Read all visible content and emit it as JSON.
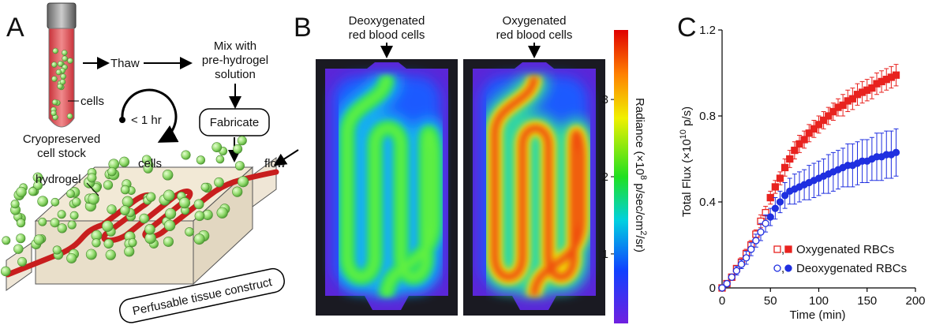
{
  "panel_a": {
    "label": "A",
    "cells_label": "cells",
    "thaw": "Thaw",
    "mix": [
      "Mix with",
      "pre-hydrogel",
      "solution"
    ],
    "fabricate": "Fabricate",
    "time": "< 1 hr",
    "stock": [
      "Cryopreserved",
      "cell stock"
    ],
    "construct_cells": "cells",
    "hydrogel": "hydrogel",
    "flow": "flow",
    "construct": "Perfusable tissue construct"
  },
  "panel_b": {
    "label": "B",
    "images": [
      [
        "Deoxygenated",
        "red blood cells"
      ],
      [
        "Oxygenated",
        "red blood cells"
      ]
    ],
    "colorbar": {
      "label": [
        "Radiance (×10",
        "8",
        " p/sec/cm",
        "2",
        "/sr)"
      ],
      "clim": [
        0.1,
        3.9
      ],
      "ticks": [
        1,
        2,
        3
      ]
    }
  },
  "chart_data": {
    "type": "scatter",
    "panel_label": "C",
    "xlabel": "Time (min)",
    "ylabel": [
      "Total Flux (×10",
      "10",
      " p/s)"
    ],
    "xlim": [
      0,
      200
    ],
    "xticks": [
      0,
      50,
      100,
      150,
      200
    ],
    "ylim": [
      0,
      1.2
    ],
    "yticks": [
      0,
      0.4,
      0.8,
      1.2
    ],
    "legend": "lower right",
    "legend_separator": ",",
    "hollow_until": 45,
    "x": [
      0,
      5,
      10,
      15,
      20,
      25,
      30,
      35,
      40,
      45,
      50,
      55,
      60,
      65,
      70,
      75,
      80,
      85,
      90,
      95,
      100,
      105,
      110,
      115,
      120,
      125,
      130,
      135,
      140,
      145,
      150,
      155,
      160,
      165,
      170,
      175,
      180
    ],
    "series": [
      {
        "name": "Oxygenated RBCs",
        "color": "#e8221f",
        "marker": "square",
        "values": [
          0,
          0.02,
          0.05,
          0.09,
          0.12,
          0.16,
          0.2,
          0.25,
          0.31,
          0.35,
          0.42,
          0.47,
          0.51,
          0.56,
          0.6,
          0.64,
          0.67,
          0.69,
          0.72,
          0.74,
          0.76,
          0.78,
          0.8,
          0.82,
          0.84,
          0.85,
          0.87,
          0.88,
          0.9,
          0.91,
          0.92,
          0.93,
          0.95,
          0.96,
          0.97,
          0.98,
          0.99
        ],
        "errors": [
          0,
          0.01,
          0.01,
          0.01,
          0.02,
          0.02,
          0.02,
          0.02,
          0.03,
          0.03,
          0.03,
          0.03,
          0.03,
          0.04,
          0.04,
          0.04,
          0.04,
          0.04,
          0.04,
          0.04,
          0.04,
          0.04,
          0.04,
          0.04,
          0.04,
          0.05,
          0.05,
          0.05,
          0.05,
          0.05,
          0.05,
          0.05,
          0.05,
          0.05,
          0.05,
          0.05,
          0.05
        ]
      },
      {
        "name": "Deoxygenated RBCs",
        "color": "#1f2fe0",
        "marker": "circle",
        "values": [
          0,
          0.02,
          0.05,
          0.08,
          0.11,
          0.14,
          0.18,
          0.22,
          0.26,
          0.3,
          0.33,
          0.37,
          0.4,
          0.43,
          0.45,
          0.46,
          0.47,
          0.48,
          0.49,
          0.5,
          0.51,
          0.52,
          0.53,
          0.54,
          0.55,
          0.56,
          0.57,
          0.57,
          0.58,
          0.59,
          0.59,
          0.6,
          0.61,
          0.61,
          0.62,
          0.62,
          0.63
        ],
        "errors": [
          0,
          0.01,
          0.01,
          0.02,
          0.02,
          0.03,
          0.03,
          0.03,
          0.04,
          0.04,
          0.04,
          0.05,
          0.05,
          0.06,
          0.06,
          0.07,
          0.07,
          0.07,
          0.08,
          0.08,
          0.08,
          0.08,
          0.09,
          0.09,
          0.09,
          0.09,
          0.1,
          0.1,
          0.1,
          0.1,
          0.1,
          0.1,
          0.11,
          0.11,
          0.11,
          0.11,
          0.11
        ]
      }
    ]
  }
}
